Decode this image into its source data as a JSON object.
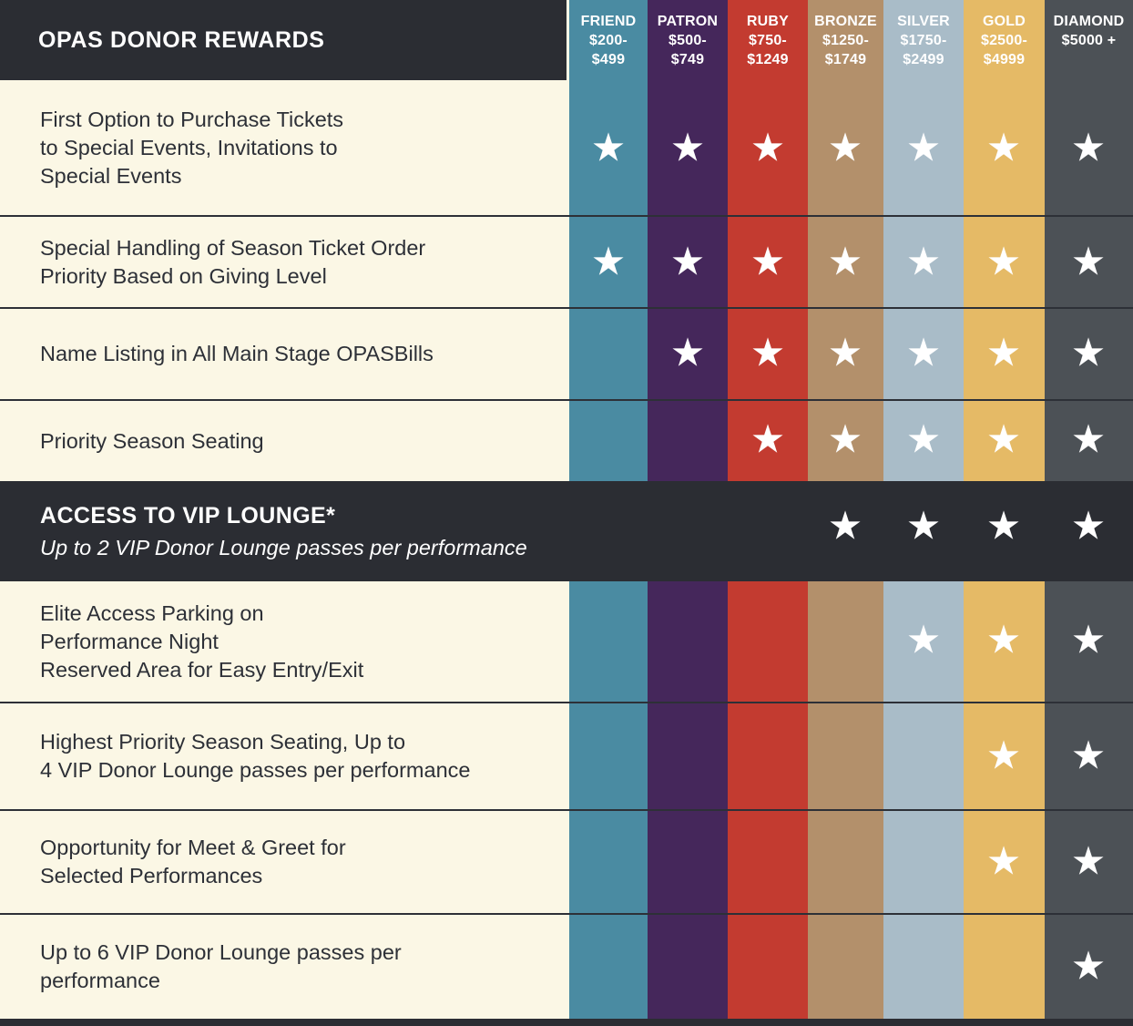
{
  "glyphs": {
    "star": "★"
  },
  "colors": {
    "background": "#fbf7e5",
    "header_bar": "#2b2d33",
    "highlight_band": "#2b2d33",
    "label_text": "#2d3037",
    "divider": "#2d3037",
    "star": "#ffffff"
  },
  "chart_data": {
    "type": "table",
    "title": "OPAS DONOR REWARDS",
    "legend_position": "top",
    "columns": [
      {
        "name": "FRIEND",
        "range1": "$200-",
        "range2": "$499",
        "color": "#4a8ba2"
      },
      {
        "name": "PATRON",
        "range1": "$500-",
        "range2": "$749",
        "color": "#45275b"
      },
      {
        "name": "RUBY",
        "range1": "$750-",
        "range2": "$1249",
        "color": "#c33b30"
      },
      {
        "name": "BRONZE",
        "range1": "$1250-",
        "range2": "$1749",
        "color": "#b3906b"
      },
      {
        "name": "SILVER",
        "range1": "$1750-",
        "range2": "$2499",
        "color": "#a9bcc8"
      },
      {
        "name": "GOLD",
        "range1": "$2500-",
        "range2": "$4999",
        "color": "#e5ba66"
      },
      {
        "name": "DIAMOND",
        "range1": "$5000 +",
        "range2": "",
        "color": "#4c5156"
      }
    ],
    "rows": [
      {
        "label": "First Option to Purchase Tickets\nto Special Events, Invitations to\nSpecial Events",
        "stars": [
          true,
          true,
          true,
          true,
          true,
          true,
          true
        ]
      },
      {
        "label": "Special Handling of Season Ticket Order\nPriority Based on Giving Level",
        "stars": [
          true,
          true,
          true,
          true,
          true,
          true,
          true
        ]
      },
      {
        "label": "Name Listing in All Main Stage OPASBills",
        "stars": [
          false,
          true,
          true,
          true,
          true,
          true,
          true
        ]
      },
      {
        "label": "Priority Season Seating",
        "stars": [
          false,
          false,
          true,
          true,
          true,
          true,
          true
        ]
      },
      {
        "label": "ACCESS TO VIP LOUNGE*",
        "subtitle": "Up to 2 VIP Donor Lounge passes per performance",
        "highlight": true,
        "stars": [
          false,
          false,
          false,
          true,
          true,
          true,
          true
        ]
      },
      {
        "label": "Elite Access Parking on\nPerformance Night\nReserved Area for Easy Entry/Exit",
        "stars": [
          false,
          false,
          false,
          false,
          true,
          true,
          true
        ]
      },
      {
        "label": "Highest Priority Season Seating, Up to\n4 VIP Donor Lounge passes per performance",
        "stars": [
          false,
          false,
          false,
          false,
          false,
          true,
          true
        ]
      },
      {
        "label": "Opportunity for Meet & Greet for\nSelected Performances",
        "stars": [
          false,
          false,
          false,
          false,
          false,
          true,
          true
        ]
      },
      {
        "label": "Up to 6 VIP Donor Lounge passes per\nperformance",
        "stars": [
          false,
          false,
          false,
          false,
          false,
          false,
          true
        ]
      }
    ]
  }
}
